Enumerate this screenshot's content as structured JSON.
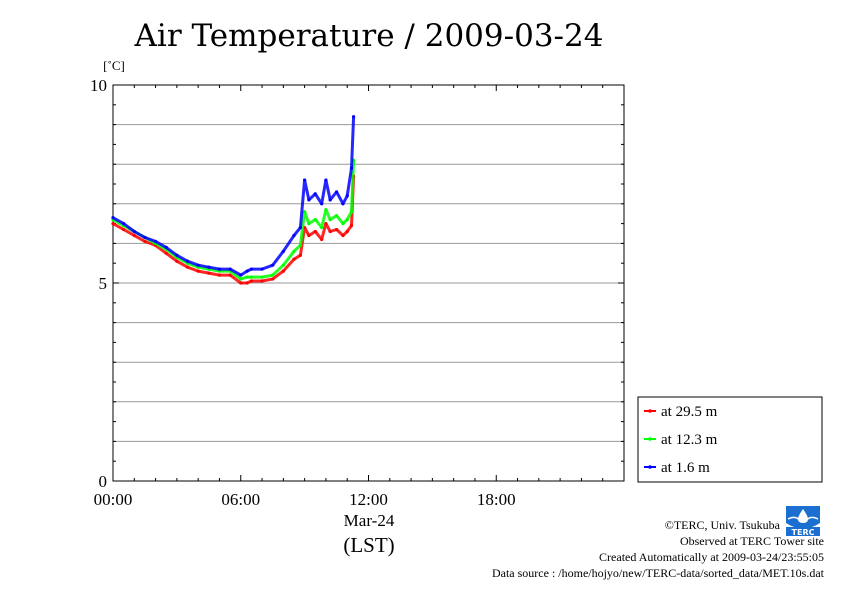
{
  "chart_data": {
    "type": "line",
    "title": "Air Temperature / 2009-03-24",
    "ylabel": "[˚C]",
    "xlabel_date": "Mar-24",
    "xlabel_tz": "(LST)",
    "xlim": [
      0,
      24
    ],
    "ylim": [
      0,
      10
    ],
    "x_ticks": [
      {
        "x": 0,
        "label": "00:00"
      },
      {
        "x": 6,
        "label": "06:00"
      },
      {
        "x": 12,
        "label": "12:00"
      },
      {
        "x": 18,
        "label": "18:00"
      }
    ],
    "y_ticks": [
      {
        "y": 0,
        "label": "0"
      },
      {
        "y": 5,
        "label": "5"
      },
      {
        "y": 10,
        "label": "10"
      }
    ],
    "grid": true,
    "legend_position": "bottom-right outside",
    "series": [
      {
        "name": "at 29.5 m",
        "color": "#ff0000",
        "x": [
          0,
          0.5,
          1,
          1.5,
          2,
          2.5,
          3,
          3.5,
          4,
          4.5,
          5,
          5.5,
          6,
          6.3,
          6.5,
          7,
          7.5,
          8,
          8.5,
          8.8,
          9,
          9.2,
          9.5,
          9.8,
          10,
          10.2,
          10.5,
          10.8,
          11,
          11.2,
          11.3
        ],
        "y": [
          6.5,
          6.35,
          6.2,
          6.05,
          5.95,
          5.75,
          5.55,
          5.4,
          5.3,
          5.25,
          5.2,
          5.2,
          5.0,
          5.0,
          5.05,
          5.05,
          5.1,
          5.3,
          5.6,
          5.7,
          6.4,
          6.2,
          6.3,
          6.1,
          6.5,
          6.3,
          6.35,
          6.2,
          6.3,
          6.45,
          7.7
        ]
      },
      {
        "name": "at 12.3 m",
        "color": "#00ff00",
        "x": [
          0,
          0.5,
          1,
          1.5,
          2,
          2.5,
          3,
          3.5,
          4,
          4.5,
          5,
          5.5,
          6,
          6.3,
          6.5,
          7,
          7.5,
          8,
          8.5,
          8.8,
          9,
          9.2,
          9.5,
          9.8,
          10,
          10.2,
          10.5,
          10.8,
          11,
          11.2,
          11.3
        ],
        "y": [
          6.6,
          6.45,
          6.3,
          6.15,
          6.0,
          5.85,
          5.65,
          5.5,
          5.4,
          5.35,
          5.3,
          5.3,
          5.1,
          5.15,
          5.15,
          5.15,
          5.2,
          5.45,
          5.8,
          5.95,
          6.8,
          6.5,
          6.6,
          6.4,
          6.85,
          6.6,
          6.7,
          6.5,
          6.6,
          6.8,
          8.1
        ]
      },
      {
        "name": "at 1.6 m",
        "color": "#0000ff",
        "x": [
          0,
          0.5,
          1,
          1.5,
          2,
          2.5,
          3,
          3.5,
          4,
          4.5,
          5,
          5.5,
          6,
          6.3,
          6.5,
          7,
          7.5,
          8,
          8.5,
          8.8,
          9,
          9.2,
          9.5,
          9.8,
          10,
          10.2,
          10.5,
          10.8,
          11,
          11.2,
          11.3
        ],
        "y": [
          6.65,
          6.5,
          6.3,
          6.15,
          6.05,
          5.9,
          5.7,
          5.55,
          5.45,
          5.4,
          5.35,
          5.35,
          5.2,
          5.3,
          5.35,
          5.35,
          5.45,
          5.8,
          6.2,
          6.4,
          7.6,
          7.1,
          7.25,
          7.0,
          7.6,
          7.1,
          7.3,
          7.0,
          7.2,
          7.9,
          9.2
        ]
      }
    ]
  },
  "credits": {
    "copyright": "©TERC, Univ. Tsukuba",
    "observed": "Observed at TERC Tower site",
    "created": "Created Automatically at 2009-03-24/23:55:05",
    "source": "Data source : /home/hojyo/new/TERC-data/sorted_data/MET.10s.dat",
    "logo_text": "TERC"
  }
}
